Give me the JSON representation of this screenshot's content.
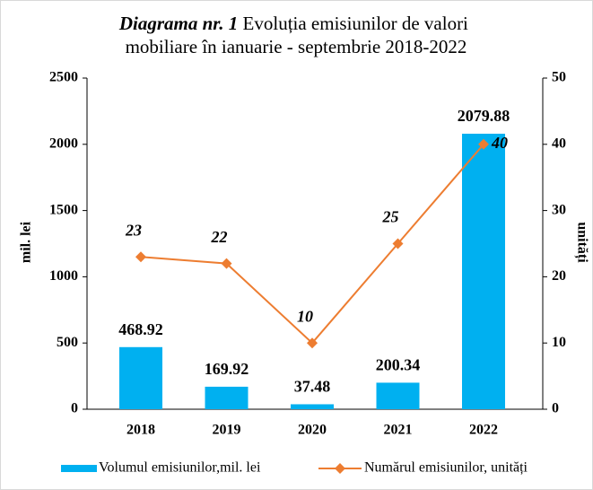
{
  "chart_data": {
    "type": "bar_line",
    "title": [
      "Diagrama nr. 1",
      "Evoluția emisiunilor de valori",
      "mobiliare în ianuarie - septembrie 2018-2022"
    ],
    "categories": [
      "2018",
      "2019",
      "2020",
      "2021",
      "2022"
    ],
    "series": [
      {
        "name": "Volumul emisiunilor,mil. lei",
        "type": "bar",
        "color": "#00b0f0",
        "axis": "y",
        "values": [
          468.92,
          169.92,
          37.48,
          200.34,
          2079.88
        ]
      },
      {
        "name": "Numărul emisiunilor, unități",
        "type": "line",
        "color": "#ed7d31",
        "axis": "y2",
        "values": [
          23,
          22,
          10,
          25,
          40
        ]
      }
    ],
    "ylabel": "mil. lei",
    "y2label": "unități",
    "ylim": [
      0,
      2500
    ],
    "yticks": [
      0,
      500,
      1000,
      1500,
      2000,
      2500
    ],
    "y2lim": [
      0,
      50
    ],
    "y2ticks": [
      0,
      10,
      20,
      30,
      40,
      50
    ],
    "legend": "bottom"
  }
}
